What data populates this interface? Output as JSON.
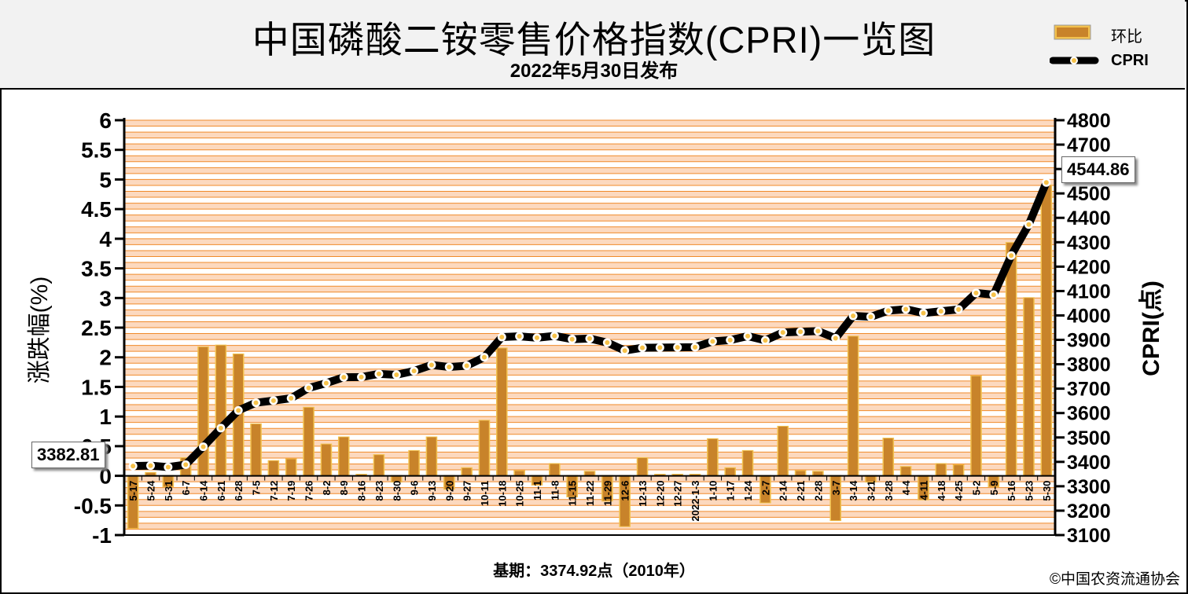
{
  "title": "中国磷酸二铵零售价格指数(CPRI)一览图",
  "subtitle": "2022年5月30日发布",
  "legend": {
    "bar_label": "环比",
    "line_label": "CPRI"
  },
  "footer": {
    "base_period": "基期：3374.92点（2010年）",
    "copyright": "©中国农资流通协会"
  },
  "callouts": {
    "start": "3382.81",
    "end": "4544.86"
  },
  "colors": {
    "bar": "#c8832a",
    "bar_highlight": "#f2c14e",
    "line": "#000000",
    "marker": "#f6c24a",
    "band": "#fcd9bf",
    "grid": "#f08a2a"
  },
  "chart_data": {
    "type": "bar",
    "xlabel": "",
    "ylabel_left": "涨跌幅(%)",
    "ylabel_right": "CPRI(点)",
    "ylim_left": [
      -1,
      6
    ],
    "yticks_left": [
      "6",
      "5.5",
      "5",
      "4.5",
      "4",
      "3.5",
      "3",
      "2.5",
      "2",
      "1.5",
      "1",
      "0.5",
      "0",
      "-0.5",
      "-1"
    ],
    "ylim_right": [
      3100,
      4800
    ],
    "yticks_right": [
      "4800",
      "4700",
      "4600",
      "4500",
      "4400",
      "4300",
      "4200",
      "4100",
      "4000",
      "3900",
      "3800",
      "3700",
      "3600",
      "3500",
      "3400",
      "3300",
      "3200",
      "3100"
    ],
    "categories": [
      "5-17",
      "5-24",
      "5-31",
      "6-7",
      "6-14",
      "6-21",
      "6-28",
      "7-5",
      "7-12",
      "7-19",
      "7-26",
      "8-2",
      "8-9",
      "8-16",
      "8-23",
      "8-30",
      "9-6",
      "9-13",
      "9-20",
      "9-27",
      "10-11",
      "10-18",
      "10-25",
      "11-1",
      "11-8",
      "11-15",
      "11-22",
      "11-29",
      "12-6",
      "12-13",
      "12-20",
      "12-27",
      "2022-1-3",
      "1-10",
      "1-17",
      "1-24",
      "2-7",
      "2-14",
      "2-21",
      "2-28",
      "3-7",
      "3-14",
      "3-21",
      "3-28",
      "4-4",
      "4-11",
      "4-18",
      "4-25",
      "5-2",
      "5-9",
      "5-16",
      "5-23",
      "5-30"
    ],
    "series": [
      {
        "name": "环比",
        "type": "bar",
        "values": [
          -0.88,
          0.05,
          -0.18,
          0.3,
          2.17,
          2.2,
          2.05,
          0.87,
          0.25,
          0.28,
          1.15,
          0.53,
          0.65,
          0.02,
          0.35,
          -0.1,
          0.42,
          0.65,
          -0.22,
          0.13,
          0.93,
          2.15,
          0.08,
          -0.15,
          0.2,
          -0.35,
          0.07,
          -0.42,
          -0.85,
          0.3,
          0.02,
          0.02,
          0.02,
          0.62,
          0.13,
          0.42,
          -0.45,
          0.83,
          0.08,
          0.07,
          -0.75,
          2.35,
          -0.1,
          0.63,
          0.15,
          -0.4,
          0.2,
          0.18,
          1.68,
          -0.18,
          3.93,
          3.0,
          4.9
        ]
      },
      {
        "name": "CPRI",
        "type": "line",
        "values": [
          3382.81,
          3384.5,
          3378.5,
          3388.6,
          3462,
          3538.3,
          3610.8,
          3642.3,
          3650.9,
          3660.7,
          3702.8,
          3722.5,
          3746.7,
          3747.4,
          3760.5,
          3756.8,
          3772.6,
          3797.1,
          3788.8,
          3793.7,
          3829,
          3911.3,
          3914.4,
          3908.5,
          3916.3,
          3902.6,
          3905.3,
          3888.9,
          3855.9,
          3867.5,
          3868.3,
          3869,
          3869.8,
          3893.8,
          3898.9,
          3915.3,
          3897.7,
          3930.1,
          3933.2,
          3936,
          3906.5,
          3998.3,
          3994.3,
          4019.5,
          4025.5,
          4009.4,
          4017.4,
          4024.6,
          4092.2,
          4084.8,
          4245.3,
          4372.6,
          4544.86
        ]
      }
    ]
  }
}
